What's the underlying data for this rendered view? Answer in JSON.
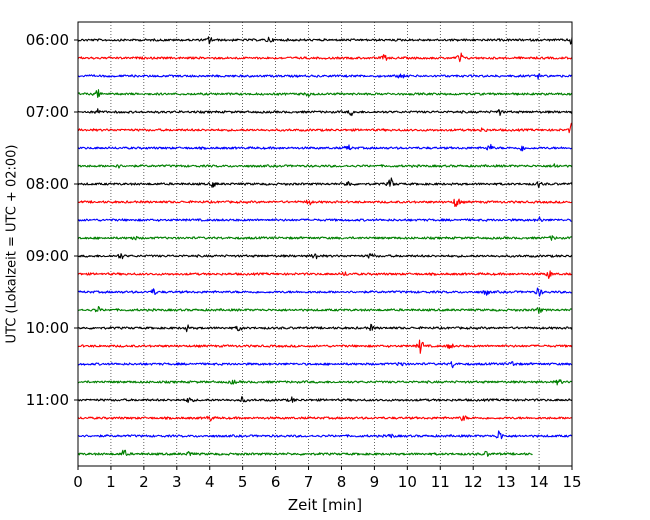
{
  "chart_data": {
    "type": "line",
    "title": "",
    "xlabel": "Zeit  [min]",
    "ylabel": "UTC (Lokalzeit = UTC + 02:00)",
    "xlim": [
      0,
      15
    ],
    "x_ticks": [
      0,
      1,
      2,
      3,
      4,
      5,
      6,
      7,
      8,
      9,
      10,
      11,
      12,
      13,
      14,
      15
    ],
    "y_tick_labels": [
      "06:00",
      "07:00",
      "08:00",
      "09:00",
      "10:00",
      "11:00"
    ],
    "trace_interval_minutes": 15,
    "start_time": "06:00",
    "grid": "vertical dotted lines at each minute",
    "color_cycle": [
      "#000000",
      "#ff0000",
      "#0000ff",
      "#008000"
    ],
    "series": [
      {
        "start": "06:00",
        "color": "#000000",
        "end_min": 15,
        "events": [
          {
            "t": 4.0,
            "amp": 0.4
          },
          {
            "t": 5.8,
            "amp": 0.3
          },
          {
            "t": 15.0,
            "amp": 0.6
          }
        ]
      },
      {
        "start": "06:15",
        "color": "#ff0000",
        "end_min": 15,
        "events": [
          {
            "t": 9.3,
            "amp": 0.3
          },
          {
            "t": 11.6,
            "amp": 0.6
          }
        ]
      },
      {
        "start": "06:30",
        "color": "#0000ff",
        "end_min": 15,
        "events": [
          {
            "t": 9.8,
            "amp": 0.3
          },
          {
            "t": 14.0,
            "amp": 0.25
          }
        ]
      },
      {
        "start": "06:45",
        "color": "#008000",
        "end_min": 15,
        "events": [
          {
            "t": 0.6,
            "amp": 0.4
          },
          {
            "t": 7.0,
            "amp": 0.2
          }
        ]
      },
      {
        "start": "07:00",
        "color": "#000000",
        "end_min": 15,
        "events": [
          {
            "t": 0.6,
            "amp": 0.3
          },
          {
            "t": 8.3,
            "amp": 0.3
          },
          {
            "t": 12.8,
            "amp": 0.3
          }
        ]
      },
      {
        "start": "07:15",
        "color": "#ff0000",
        "end_min": 15,
        "events": [
          {
            "t": 12.3,
            "amp": 0.25
          },
          {
            "t": 15.0,
            "amp": 0.7
          }
        ]
      },
      {
        "start": "07:30",
        "color": "#0000ff",
        "end_min": 15,
        "events": [
          {
            "t": 8.2,
            "amp": 0.3
          },
          {
            "t": 12.5,
            "amp": 0.4
          },
          {
            "t": 13.5,
            "amp": 0.3
          }
        ]
      },
      {
        "start": "07:45",
        "color": "#008000",
        "end_min": 15,
        "events": [
          {
            "t": 1.2,
            "amp": 0.2
          },
          {
            "t": 14.5,
            "amp": 0.25
          }
        ]
      },
      {
        "start": "08:00",
        "color": "#000000",
        "end_min": 15,
        "events": [
          {
            "t": 4.1,
            "amp": 0.3
          },
          {
            "t": 8.2,
            "amp": 0.3
          },
          {
            "t": 9.5,
            "amp": 0.6
          },
          {
            "t": 14.0,
            "amp": 0.3
          }
        ]
      },
      {
        "start": "08:15",
        "color": "#ff0000",
        "end_min": 15,
        "events": [
          {
            "t": 7.0,
            "amp": 0.3
          },
          {
            "t": 11.5,
            "amp": 0.7
          }
        ]
      },
      {
        "start": "08:30",
        "color": "#0000ff",
        "end_min": 15,
        "events": [
          {
            "t": 14.0,
            "amp": 0.3
          }
        ]
      },
      {
        "start": "08:45",
        "color": "#008000",
        "end_min": 15,
        "events": [
          {
            "t": 1.7,
            "amp": 0.2
          },
          {
            "t": 14.4,
            "amp": 0.2
          }
        ]
      },
      {
        "start": "09:00",
        "color": "#000000",
        "end_min": 15,
        "events": [
          {
            "t": 1.3,
            "amp": 0.3
          },
          {
            "t": 7.2,
            "amp": 0.4
          },
          {
            "t": 8.9,
            "amp": 0.3
          }
        ]
      },
      {
        "start": "09:15",
        "color": "#ff0000",
        "end_min": 15,
        "events": [
          {
            "t": 8.1,
            "amp": 0.2
          },
          {
            "t": 14.3,
            "amp": 0.4
          }
        ]
      },
      {
        "start": "09:30",
        "color": "#0000ff",
        "end_min": 15,
        "events": [
          {
            "t": 2.3,
            "amp": 0.3
          },
          {
            "t": 12.4,
            "amp": 0.3
          },
          {
            "t": 14.0,
            "amp": 0.5
          }
        ]
      },
      {
        "start": "09:45",
        "color": "#008000",
        "end_min": 15,
        "events": [
          {
            "t": 0.6,
            "amp": 0.3
          },
          {
            "t": 14.0,
            "amp": 0.3
          }
        ]
      },
      {
        "start": "10:00",
        "color": "#000000",
        "end_min": 15,
        "events": [
          {
            "t": 3.3,
            "amp": 0.3
          },
          {
            "t": 4.9,
            "amp": 0.3
          },
          {
            "t": 8.9,
            "amp": 0.3
          }
        ]
      },
      {
        "start": "10:15",
        "color": "#ff0000",
        "end_min": 15,
        "events": [
          {
            "t": 10.4,
            "amp": 0.8
          },
          {
            "t": 11.3,
            "amp": 0.3
          }
        ]
      },
      {
        "start": "10:30",
        "color": "#0000ff",
        "end_min": 15,
        "events": [
          {
            "t": 9.8,
            "amp": 0.3
          },
          {
            "t": 11.4,
            "amp": 0.4
          },
          {
            "t": 13.2,
            "amp": 0.3
          }
        ]
      },
      {
        "start": "10:45",
        "color": "#008000",
        "end_min": 15,
        "events": [
          {
            "t": 4.7,
            "amp": 0.2
          },
          {
            "t": 14.6,
            "amp": 0.3
          }
        ]
      },
      {
        "start": "11:00",
        "color": "#000000",
        "end_min": 15,
        "events": [
          {
            "t": 3.4,
            "amp": 0.4
          },
          {
            "t": 5.0,
            "amp": 0.3
          },
          {
            "t": 6.5,
            "amp": 0.25
          }
        ]
      },
      {
        "start": "11:15",
        "color": "#ff0000",
        "end_min": 15,
        "events": [
          {
            "t": 4.0,
            "amp": 0.3
          },
          {
            "t": 11.7,
            "amp": 0.3
          }
        ]
      },
      {
        "start": "11:30",
        "color": "#0000ff",
        "end_min": 15,
        "events": [
          {
            "t": 12.8,
            "amp": 0.6
          },
          {
            "t": 9.5,
            "amp": 0.2
          }
        ]
      },
      {
        "start": "11:45",
        "color": "#008000",
        "end_min": 13.8,
        "events": [
          {
            "t": 1.4,
            "amp": 0.4
          },
          {
            "t": 3.4,
            "amp": 0.25
          },
          {
            "t": 12.4,
            "amp": 0.25
          }
        ]
      }
    ]
  }
}
